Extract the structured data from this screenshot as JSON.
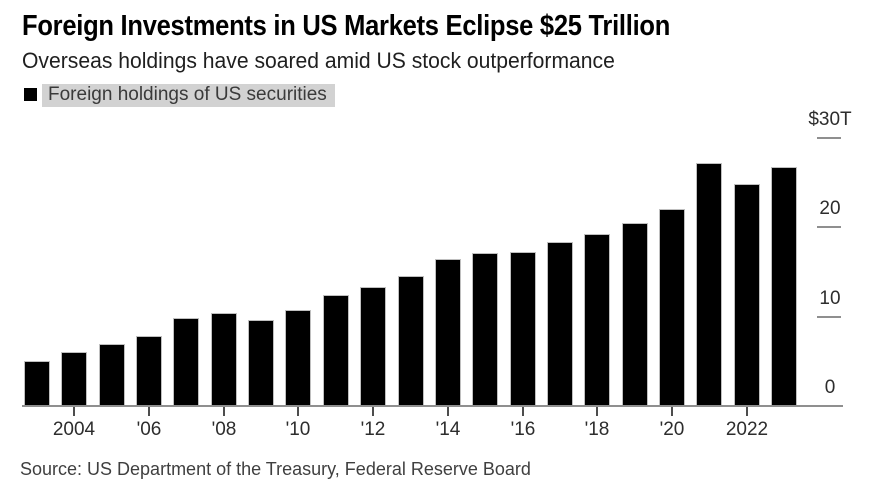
{
  "header": {
    "title": "Foreign Investments in US Markets Eclipse $25 Trillion",
    "subtitle": "Overseas holdings have soared amid US stock outperformance"
  },
  "legend": {
    "label": "Foreign holdings of US securities",
    "swatch_color": "#000000",
    "highlight_color": "#d2d2d2"
  },
  "source": "Source: US Department of the Treasury, Federal Reserve Board",
  "chart_data": {
    "type": "bar",
    "title": "Foreign Investments in US Markets Eclipse $25 Trillion",
    "subtitle": "Overseas holdings have soared amid US stock outperformance",
    "series_name": "Foreign holdings of US securities",
    "unit": "USD trillions",
    "categories": [
      2003,
      2004,
      2005,
      2006,
      2007,
      2008,
      2009,
      2010,
      2011,
      2012,
      2013,
      2014,
      2015,
      2016,
      2017,
      2018,
      2019,
      2020,
      2021,
      2022,
      2023
    ],
    "values": [
      5.0,
      6.0,
      6.9,
      7.8,
      9.8,
      10.4,
      9.6,
      10.7,
      12.4,
      13.3,
      14.5,
      16.5,
      17.1,
      17.2,
      18.4,
      19.3,
      20.5,
      22.0,
      27.2,
      24.9,
      26.8
    ],
    "x_tick_labels": [
      "",
      "2004",
      "",
      "'06",
      "",
      "'08",
      "",
      "'10",
      "",
      "'12",
      "",
      "'14",
      "",
      "'16",
      "",
      "'18",
      "",
      "'20",
      "",
      "2022",
      ""
    ],
    "y_axis": {
      "min": 0,
      "max": 30,
      "side": "right",
      "ticks": [
        {
          "value": 0,
          "label": "0"
        },
        {
          "value": 10,
          "label": "10"
        },
        {
          "value": 20,
          "label": "20"
        },
        {
          "value": 30,
          "label": "$30T"
        }
      ]
    },
    "grid": false,
    "legend_position": "top-left",
    "bar_color": "#000000",
    "axis_line_color": "#8f8f8f",
    "source": "US Department of the Treasury, Federal Reserve Board"
  }
}
